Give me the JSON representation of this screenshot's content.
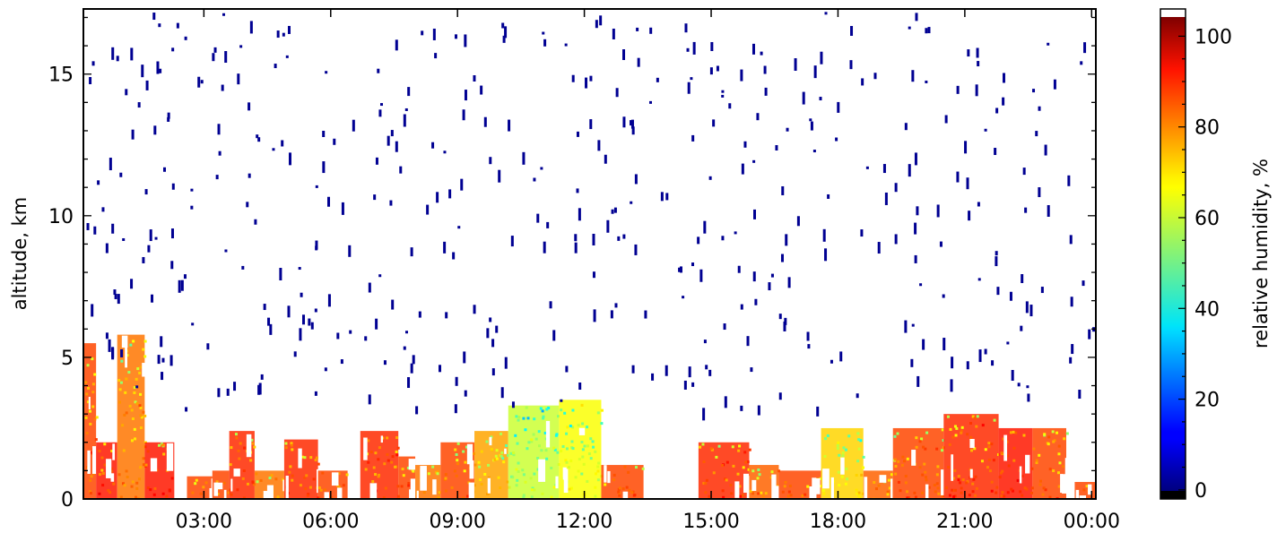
{
  "chart_data": {
    "type": "heatmap",
    "title": "",
    "xlabel": "",
    "ylabel": "altitude, km",
    "x_ticks": [
      "03:00",
      "06:00",
      "09:00",
      "12:00",
      "15:00",
      "18:00",
      "21:00",
      "00:00"
    ],
    "x_tick_hours": [
      3,
      6,
      9,
      12,
      15,
      18,
      21,
      24
    ],
    "xlim_hours": [
      0.15,
      24.1
    ],
    "y_ticks": [
      "0",
      "5",
      "10",
      "15"
    ],
    "y_tick_values": [
      0,
      5,
      10,
      15
    ],
    "ylim": [
      0,
      17.3
    ],
    "grid": false,
    "colorbar": {
      "label": "relative humidity, %",
      "ticks": [
        "0",
        "20",
        "40",
        "60",
        "80",
        "100"
      ],
      "tick_values": [
        0,
        20,
        40,
        60,
        80,
        100
      ],
      "range": [
        -2,
        106
      ],
      "colormap": "jet",
      "under_color": "#000000",
      "over_color": "#ffffff"
    },
    "low_level_humidity_blocks": [
      {
        "hours": [
          0.15,
          0.45
        ],
        "top_km": 5.5,
        "rh": 85
      },
      {
        "hours": [
          0.45,
          0.95
        ],
        "top_km": 2.0,
        "rh": 90
      },
      {
        "hours": [
          0.95,
          1.6
        ],
        "top_km": 5.8,
        "rh": 80
      },
      {
        "hours": [
          1.6,
          2.3
        ],
        "top_km": 2.0,
        "rh": 90
      },
      {
        "hours": [
          2.6,
          3.2
        ],
        "top_km": 0.8,
        "rh": 85
      },
      {
        "hours": [
          3.2,
          3.6
        ],
        "top_km": 1.0,
        "rh": 85
      },
      {
        "hours": [
          3.6,
          4.2
        ],
        "top_km": 2.4,
        "rh": 88
      },
      {
        "hours": [
          4.2,
          4.9
        ],
        "top_km": 1.0,
        "rh": 80
      },
      {
        "hours": [
          4.9,
          5.7
        ],
        "top_km": 2.1,
        "rh": 88
      },
      {
        "hours": [
          5.7,
          6.4
        ],
        "top_km": 1.0,
        "rh": 85
      },
      {
        "hours": [
          6.7,
          7.6
        ],
        "top_km": 2.4,
        "rh": 88
      },
      {
        "hours": [
          7.6,
          8.0
        ],
        "top_km": 1.5,
        "rh": 85
      },
      {
        "hours": [
          8.0,
          8.6
        ],
        "top_km": 1.2,
        "rh": 80
      },
      {
        "hours": [
          8.6,
          9.4
        ],
        "top_km": 2.0,
        "rh": 85
      },
      {
        "hours": [
          9.4,
          10.2
        ],
        "top_km": 2.4,
        "rh": 75
      },
      {
        "hours": [
          10.2,
          11.4
        ],
        "top_km": 3.3,
        "rh": 60
      },
      {
        "hours": [
          11.4,
          12.4
        ],
        "top_km": 3.5,
        "rh": 65
      },
      {
        "hours": [
          12.4,
          13.4
        ],
        "top_km": 1.2,
        "rh": 85
      },
      {
        "hours": [
          14.7,
          15.9
        ],
        "top_km": 2.0,
        "rh": 88
      },
      {
        "hours": [
          15.9,
          16.6
        ],
        "top_km": 1.2,
        "rh": 82
      },
      {
        "hours": [
          16.6,
          17.6
        ],
        "top_km": 1.0,
        "rh": 85
      },
      {
        "hours": [
          17.6,
          18.6
        ],
        "top_km": 2.5,
        "rh": 70
      },
      {
        "hours": [
          18.6,
          19.3
        ],
        "top_km": 1.0,
        "rh": 82
      },
      {
        "hours": [
          19.3,
          20.5
        ],
        "top_km": 2.5,
        "rh": 85
      },
      {
        "hours": [
          20.5,
          21.8
        ],
        "top_km": 3.0,
        "rh": 88
      },
      {
        "hours": [
          21.8,
          22.6
        ],
        "top_km": 2.5,
        "rh": 90
      },
      {
        "hours": [
          22.6,
          23.4
        ],
        "top_km": 2.5,
        "rh": 85
      },
      {
        "hours": [
          23.6,
          24.1
        ],
        "top_km": 0.6,
        "rh": 85
      }
    ],
    "upper_level_rh": 0
  }
}
